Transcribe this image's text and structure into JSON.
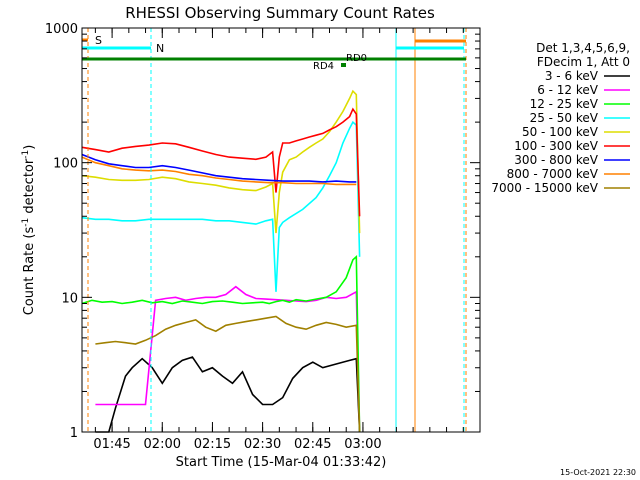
{
  "chart_data": {
    "type": "line",
    "title": "RHESSI Observing Summary Count Rates",
    "xlabel": "Start Time (15-Mar-04 01:33:42)",
    "ylabel_main": "Count Rate (s",
    "ylabel_sup1": "-1",
    "ylabel_mid": " detector",
    "ylabel_sup2": "-1",
    "ylabel_end": ")",
    "yscale": "log",
    "ylim": [
      1,
      1000
    ],
    "xlim_min": [
      96,
      215
    ],
    "x_ticks": [
      "01:45",
      "02:00",
      "02:15",
      "02:30",
      "02:45",
      "03:00"
    ],
    "x_tick_min": [
      105,
      120,
      135,
      150,
      165,
      180
    ],
    "y_ticks": [
      "1",
      "10",
      "100",
      "1000"
    ],
    "y_tick_vals": [
      1,
      10,
      100,
      1000
    ],
    "legend_header": [
      "Det 1,3,4,5,6,9,",
      "FDecim 1, Att 0"
    ],
    "legend_position": "right",
    "series": [
      {
        "name": "3 - 6 keV",
        "color": "#000000",
        "x": [
          100,
          104,
          106,
          109,
          111,
          114,
          117,
          120,
          123,
          126,
          129,
          132,
          135,
          138,
          141,
          144,
          147,
          150,
          153,
          156,
          159,
          162,
          165,
          168,
          172,
          176,
          178,
          179
        ],
        "y": [
          1,
          1,
          1.5,
          2.6,
          3,
          3.5,
          3,
          2.3,
          3,
          3.4,
          3.6,
          2.8,
          3,
          2.6,
          2.3,
          2.8,
          1.9,
          1.6,
          1.6,
          1.8,
          2.5,
          3,
          3.3,
          3,
          3.2,
          3.4,
          3.5,
          1
        ]
      },
      {
        "name": "6 - 12 keV",
        "color": "#ff00ff",
        "x": [
          100,
          104,
          106,
          109,
          112,
          115,
          118,
          121,
          124,
          127,
          130,
          133,
          136,
          139,
          142,
          145,
          148,
          151,
          154,
          157,
          160,
          163,
          166,
          169,
          172,
          175,
          178,
          179
        ],
        "y": [
          1.6,
          1.6,
          1.6,
          1.6,
          1.6,
          1.6,
          9.5,
          9.8,
          10,
          9.5,
          9.8,
          10,
          10,
          10.5,
          12,
          10.5,
          9.8,
          9.7,
          9.6,
          9.5,
          9.4,
          9.3,
          9.5,
          10,
          9.8,
          10,
          11,
          1
        ]
      },
      {
        "name": "12 - 25 keV",
        "color": "#00ff00",
        "x": [
          96,
          99,
          102,
          105,
          108,
          111,
          114,
          117,
          120,
          123,
          126,
          129,
          132,
          135,
          138,
          141,
          144,
          147,
          150,
          152,
          154,
          156,
          158,
          160,
          163,
          166,
          169,
          172,
          175,
          177,
          178,
          179
        ],
        "y": [
          9,
          9.5,
          9.2,
          9.3,
          9,
          9.2,
          9.5,
          9.1,
          9.3,
          9,
          9.4,
          9.2,
          9,
          9.3,
          9.4,
          9.2,
          9,
          9.1,
          9.2,
          9,
          9.3,
          9.5,
          9.2,
          9.6,
          9.4,
          9.7,
          10,
          11,
          14,
          19,
          20,
          1
        ]
      },
      {
        "name": "25 - 50 keV",
        "color": "#00ffff",
        "x": [
          96,
          100,
          104,
          108,
          112,
          116,
          120,
          124,
          128,
          132,
          136,
          140,
          144,
          148,
          151,
          153,
          154,
          155,
          156,
          158,
          162,
          166,
          168,
          170,
          172,
          174,
          176,
          177,
          178,
          179
        ],
        "y": [
          39,
          38,
          38,
          37,
          37,
          38,
          38,
          38,
          38,
          38,
          37,
          37,
          36,
          35,
          37,
          38,
          11,
          33,
          36,
          39,
          45,
          55,
          65,
          80,
          100,
          140,
          180,
          200,
          190,
          20
        ]
      },
      {
        "name": "50 - 100 keV",
        "color": "#dddd00",
        "x": [
          96,
          100,
          104,
          108,
          112,
          116,
          120,
          124,
          128,
          132,
          136,
          140,
          144,
          148,
          151,
          153,
          154,
          155,
          156,
          158,
          160,
          162,
          164,
          166,
          168,
          170,
          172,
          174,
          176,
          177,
          178,
          179
        ],
        "y": [
          80,
          78,
          75,
          74,
          74,
          75,
          78,
          76,
          72,
          70,
          68,
          65,
          63,
          62,
          66,
          70,
          30,
          60,
          85,
          105,
          110,
          120,
          130,
          140,
          150,
          170,
          200,
          240,
          300,
          340,
          320,
          30
        ]
      },
      {
        "name": "100 - 300 keV",
        "color": "#ff0000",
        "x": [
          96,
          100,
          104,
          108,
          112,
          116,
          120,
          124,
          128,
          132,
          136,
          140,
          144,
          148,
          151,
          153,
          154,
          155,
          156,
          158,
          160,
          162,
          164,
          166,
          168,
          170,
          172,
          174,
          176,
          177,
          178,
          179
        ],
        "y": [
          130,
          125,
          120,
          128,
          132,
          135,
          140,
          138,
          130,
          122,
          115,
          110,
          108,
          106,
          110,
          120,
          60,
          110,
          140,
          140,
          145,
          150,
          155,
          160,
          165,
          175,
          185,
          200,
          220,
          250,
          230,
          40
        ]
      },
      {
        "name": "300 - 800 keV",
        "color": "#0000ff",
        "x": [
          96,
          100,
          104,
          108,
          112,
          116,
          120,
          124,
          128,
          132,
          136,
          140,
          144,
          148,
          152,
          156,
          160,
          164,
          168,
          172,
          176,
          178
        ],
        "y": [
          115,
          105,
          98,
          95,
          92,
          92,
          95,
          92,
          88,
          84,
          80,
          78,
          76,
          75,
          74,
          73,
          73,
          73,
          72,
          73,
          72,
          72
        ]
      },
      {
        "name": "800 - 7000 keV",
        "color": "#ff8000",
        "x": [
          96,
          100,
          104,
          108,
          112,
          116,
          120,
          124,
          128,
          132,
          136,
          140,
          144,
          148,
          152,
          156,
          160,
          164,
          168,
          172,
          176,
          178
        ],
        "y": [
          110,
          100,
          95,
          90,
          88,
          87,
          88,
          86,
          82,
          80,
          77,
          75,
          73,
          72,
          71,
          71,
          70,
          70,
          70,
          69,
          69,
          69
        ]
      },
      {
        "name": "7000 - 15000 keV",
        "color": "#a08000",
        "x": [
          100,
          103,
          106,
          109,
          112,
          115,
          118,
          121,
          124,
          127,
          130,
          133,
          136,
          139,
          142,
          145,
          148,
          151,
          154,
          157,
          160,
          163,
          166,
          169,
          172,
          175,
          178,
          179
        ],
        "y": [
          4.5,
          4.6,
          4.7,
          4.6,
          4.5,
          4.8,
          5.2,
          5.8,
          6.2,
          6.5,
          6.8,
          6,
          5.6,
          6.2,
          6.4,
          6.6,
          6.8,
          7,
          7.2,
          6.4,
          6,
          5.8,
          6.2,
          6.5,
          6.3,
          6,
          6.2,
          1
        ]
      }
    ],
    "annotations": [
      {
        "text": "S"
      },
      {
        "text": "N"
      },
      {
        "text": "RD0"
      },
      {
        "text": "RD4"
      }
    ]
  },
  "footer_timestamp": "15-Oct-2021 22:30"
}
